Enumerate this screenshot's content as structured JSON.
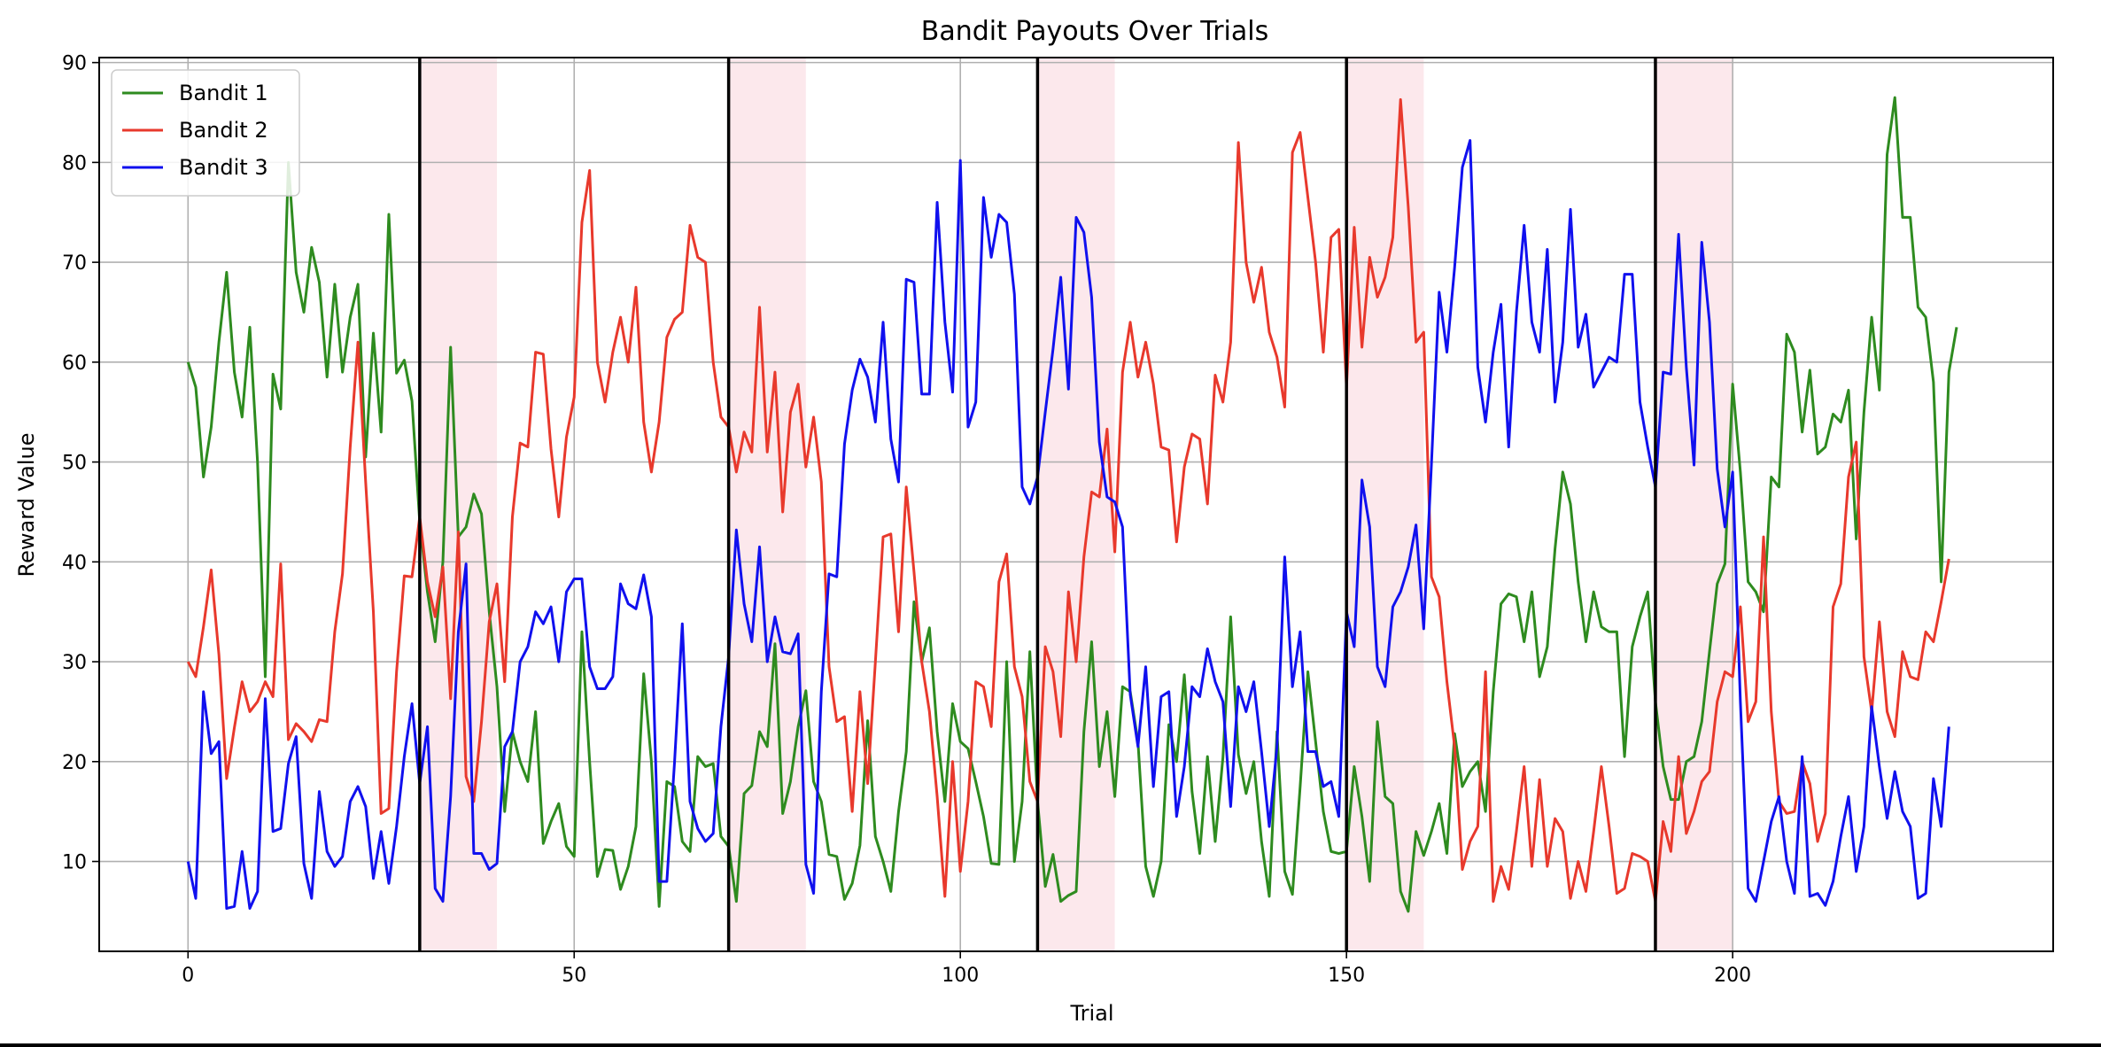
{
  "chart_data": {
    "type": "line",
    "title": "Bandit Payouts Over Trials",
    "xlabel": "Trial",
    "ylabel": "Reward Value",
    "xlim": [
      -11.5,
      241.5
    ],
    "ylim": [
      1,
      90.5
    ],
    "xticks": [
      0,
      50,
      100,
      150,
      200
    ],
    "yticks": [
      10,
      20,
      30,
      40,
      50,
      60,
      70,
      80,
      90
    ],
    "grid": true,
    "legend_position": "upper-left",
    "switch_lines": [
      30,
      70,
      110,
      150,
      190
    ],
    "shaded_regions": [
      [
        30,
        40
      ],
      [
        70,
        80
      ],
      [
        110,
        120
      ],
      [
        150,
        160
      ],
      [
        190,
        200
      ]
    ],
    "series": [
      {
        "name": "Bandit 1",
        "color": "#2e8b1f",
        "values": [
          60.0,
          57.5,
          48.5,
          53.5,
          62.0,
          69.0,
          59.0,
          54.5,
          63.5,
          50.0,
          28.5,
          58.8,
          55.3,
          80.0,
          69.0,
          65.0,
          71.5,
          68.0,
          58.5,
          67.8,
          59.0,
          64.5,
          67.8,
          50.5,
          62.9,
          53.0,
          74.8,
          58.9,
          60.2,
          56.1,
          44.0,
          37.0,
          32.0,
          40.0,
          61.5,
          42.5,
          43.5,
          46.8,
          44.8,
          35.0,
          27.5,
          15.0,
          23.0,
          20.0,
          18.0,
          25.0,
          11.8,
          14.0,
          15.8,
          11.5,
          10.5,
          33.0,
          20.0,
          8.5,
          11.2,
          11.1,
          7.2,
          9.5,
          13.5,
          28.8,
          20.0,
          5.5,
          18.0,
          17.5,
          12.0,
          11.0,
          20.5,
          19.5,
          19.8,
          12.5,
          11.5,
          6.0,
          16.8,
          17.6,
          23.0,
          21.5,
          31.8,
          14.8,
          18.0,
          23.5,
          27.1,
          18.0,
          16.0,
          10.7,
          10.5,
          6.2,
          7.8,
          11.6,
          24.1,
          12.5,
          10.0,
          7.0,
          15.0,
          21.0,
          36.0,
          30.0,
          33.4,
          23.0,
          16.0,
          25.8,
          22.0,
          21.3,
          18.0,
          14.5,
          9.8,
          9.7,
          30.0,
          10.0,
          16.0,
          31.0,
          16.0,
          7.5,
          10.7,
          6.0,
          6.6,
          7.0,
          23.0,
          32.0,
          19.5,
          25.0,
          16.5,
          27.5,
          27.0,
          22.0,
          9.5,
          6.5,
          10.0,
          23.7,
          20.0,
          28.7,
          17.0,
          10.8,
          20.5,
          12.0,
          20.4,
          34.5,
          20.7,
          16.8,
          20.0,
          12.0,
          6.5,
          23.0,
          9.0,
          6.7,
          17.5,
          29.0,
          22.0,
          15.0,
          11.0,
          10.8,
          11.0,
          19.5,
          14.5,
          8.0,
          24.0,
          16.5,
          15.8,
          7.0,
          5.0,
          13.0,
          10.6,
          13.0,
          15.8,
          10.8,
          22.8,
          17.5,
          19.0,
          20.0,
          15.0,
          27.0,
          35.8,
          36.8,
          36.5,
          32.0,
          37.0,
          28.5,
          31.5,
          41.3,
          49.0,
          45.8,
          38.0,
          32.0,
          37.0,
          33.5,
          33.0,
          33.0,
          20.5,
          31.5,
          34.5,
          37.0,
          26.0,
          19.5,
          16.2,
          16.2,
          20.0,
          20.5,
          24.0,
          31.0,
          37.8,
          39.8,
          57.8,
          49.0,
          38.0,
          37.0,
          35.0,
          48.5,
          47.5,
          62.8,
          61.0,
          53.0,
          59.2,
          50.8,
          51.5,
          54.8,
          54.0,
          57.2,
          42.3,
          55.0,
          64.5,
          57.2,
          80.8,
          86.5,
          74.5,
          74.5,
          65.5,
          64.5,
          58.0,
          38.0,
          59.0,
          63.5
        ]
      },
      {
        "name": "Bandit 2",
        "color": "#e8392c",
        "values": [
          30.0,
          28.5,
          33.5,
          39.2,
          30.7,
          18.3,
          23.4,
          28.0,
          25.0,
          26.0,
          28.0,
          26.5,
          39.8,
          22.2,
          23.8,
          23.0,
          22.0,
          24.2,
          24.0,
          33.0,
          38.8,
          51.5,
          62.0,
          48.0,
          35.0,
          14.8,
          15.3,
          29.0,
          38.6,
          38.5,
          44.5,
          38.0,
          34.5,
          39.5,
          26.3,
          43.0,
          18.5,
          16.0,
          24.0,
          34.0,
          37.8,
          28.0,
          44.5,
          51.9,
          51.5,
          61.0,
          60.8,
          51.3,
          44.5,
          52.5,
          56.5,
          74.0,
          79.2,
          60.0,
          56.0,
          61.0,
          64.5,
          60.0,
          67.5,
          54.0,
          49.0,
          54.0,
          62.5,
          64.3,
          65.0,
          73.7,
          70.5,
          70.0,
          60.0,
          54.5,
          53.5,
          49.0,
          53.0,
          51.0,
          65.5,
          51.0,
          59.0,
          45.0,
          55.0,
          57.8,
          49.5,
          54.5,
          48.0,
          29.5,
          24.0,
          24.5,
          15.0,
          27.0,
          17.8,
          30.0,
          42.5,
          42.8,
          33.0,
          47.5,
          39.0,
          30.0,
          25.0,
          16.5,
          6.5,
          20.0,
          9.0,
          16.0,
          28.0,
          27.5,
          23.5,
          38.0,
          40.8,
          29.5,
          26.5,
          18.0,
          16.0,
          31.5,
          29.0,
          22.5,
          37.0,
          30.0,
          40.5,
          47.0,
          46.5,
          53.3,
          41.0,
          59.0,
          64.0,
          58.5,
          62.0,
          57.8,
          51.5,
          51.2,
          42.0,
          49.5,
          52.8,
          52.3,
          45.8,
          58.7,
          56.0,
          62.0,
          82.0,
          70.0,
          66.0,
          69.5,
          63.0,
          60.5,
          55.5,
          81.0,
          83.0,
          76.5,
          70.0,
          61.0,
          72.5,
          73.3,
          57.5,
          73.5,
          61.5,
          70.5,
          66.5,
          68.5,
          72.5,
          86.3,
          75.5,
          62.0,
          63.0,
          38.5,
          36.5,
          28.0,
          21.5,
          9.2,
          12.0,
          13.5,
          29.0,
          6.0,
          9.5,
          7.2,
          13.0,
          19.5,
          9.5,
          18.2,
          9.5,
          14.3,
          13.0,
          6.3,
          10.0,
          7.0,
          13.0,
          19.5,
          13.5,
          6.8,
          7.3,
          10.8,
          10.5,
          10.0,
          6.0,
          14.0,
          11.0,
          20.5,
          12.8,
          15.0,
          18.0,
          19.0,
          26.0,
          29.0,
          28.5,
          35.5,
          24.0,
          26.0,
          42.5,
          25.0,
          16.0,
          14.8,
          15.0,
          20.0,
          17.8,
          12.0,
          14.8,
          35.5,
          37.8,
          48.5,
          52.0,
          30.5,
          25.0,
          34.0,
          25.0,
          22.5,
          31.0,
          28.5,
          28.2,
          33.0,
          32.0,
          36.0,
          40.3
        ]
      },
      {
        "name": "Bandit 3",
        "color": "#1010ee",
        "values": [
          10.0,
          6.3,
          27.0,
          20.8,
          22.0,
          5.3,
          5.5,
          11.0,
          5.3,
          7.0,
          26.3,
          13.0,
          13.3,
          19.8,
          22.5,
          9.8,
          6.3,
          17.0,
          11.0,
          9.5,
          10.5,
          16.0,
          17.5,
          15.5,
          8.3,
          13.0,
          7.8,
          13.5,
          20.5,
          25.8,
          17.8,
          23.5,
          7.3,
          6.0,
          16.5,
          33.0,
          39.8,
          10.8,
          10.8,
          9.2,
          9.8,
          21.5,
          23.0,
          30.0,
          31.5,
          35.0,
          33.8,
          35.5,
          30.0,
          37.0,
          38.3,
          38.3,
          29.5,
          27.3,
          27.3,
          28.5,
          37.8,
          35.8,
          35.3,
          38.7,
          34.5,
          8.0,
          8.0,
          20.0,
          33.8,
          16.0,
          13.3,
          12.0,
          12.8,
          23.5,
          30.5,
          43.2,
          35.8,
          32.0,
          41.5,
          30.0,
          34.5,
          31.0,
          30.8,
          32.8,
          9.7,
          6.8,
          27.0,
          38.8,
          38.5,
          51.8,
          57.2,
          60.3,
          58.5,
          54.0,
          64.0,
          52.3,
          48.0,
          68.3,
          68.0,
          56.8,
          56.8,
          76.0,
          64.0,
          57.0,
          80.2,
          53.5,
          56.0,
          76.5,
          70.5,
          74.8,
          74.0,
          66.8,
          47.5,
          45.8,
          48.5,
          55.0,
          61.3,
          68.5,
          57.3,
          74.5,
          73.0,
          66.5,
          52.0,
          46.5,
          46.0,
          43.5,
          26.7,
          21.5,
          29.5,
          17.5,
          26.5,
          27.0,
          14.5,
          19.5,
          27.5,
          26.5,
          31.3,
          28.0,
          26.0,
          15.5,
          27.5,
          25.0,
          28.0,
          21.0,
          13.5,
          21.5,
          40.5,
          27.5,
          33.0,
          21.0,
          21.0,
          17.5,
          18.0,
          14.5,
          35.0,
          31.5,
          48.2,
          43.5,
          29.5,
          27.5,
          35.5,
          37.0,
          39.5,
          43.7,
          33.3,
          49.8,
          67.0,
          61.0,
          69.5,
          79.5,
          82.2,
          59.5,
          54.0,
          61.0,
          65.8,
          51.5,
          65.0,
          73.7,
          64.0,
          61.0,
          71.3,
          56.0,
          62.0,
          75.3,
          61.5,
          64.8,
          57.5,
          59.0,
          60.5,
          60.0,
          68.8,
          68.8,
          56.0,
          51.5,
          47.5,
          59.0,
          58.8,
          72.8,
          59.5,
          49.7,
          72.0,
          64.0,
          49.3,
          43.5,
          49.0,
          26.0,
          7.3,
          6.0,
          10.0,
          14.0,
          16.5,
          10.0,
          6.8,
          20.5,
          6.5,
          6.8,
          5.6,
          8.0,
          12.5,
          16.5,
          9.0,
          13.5,
          25.5,
          19.5,
          14.3,
          19.0,
          15.0,
          13.5,
          6.3,
          6.8,
          18.3,
          13.5,
          23.5
        ]
      }
    ]
  }
}
